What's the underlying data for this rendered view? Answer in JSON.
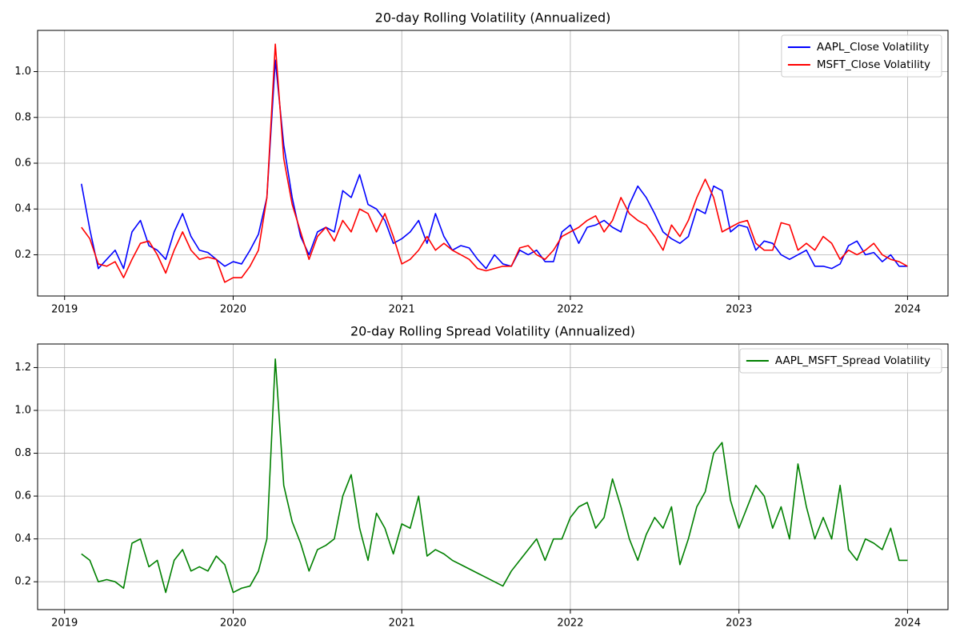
{
  "chart_data": [
    {
      "type": "line",
      "title": "20-day Rolling Volatility (Annualized)",
      "x": [
        2019.1,
        2019.15,
        2019.2,
        2019.25,
        2019.3,
        2019.35,
        2019.4,
        2019.45,
        2019.5,
        2019.55,
        2019.6,
        2019.65,
        2019.7,
        2019.75,
        2019.8,
        2019.85,
        2019.9,
        2019.95,
        2020.0,
        2020.05,
        2020.1,
        2020.15,
        2020.2,
        2020.25,
        2020.3,
        2020.35,
        2020.4,
        2020.45,
        2020.5,
        2020.55,
        2020.6,
        2020.65,
        2020.7,
        2020.75,
        2020.8,
        2020.85,
        2020.9,
        2020.95,
        2021.0,
        2021.05,
        2021.1,
        2021.15,
        2021.2,
        2021.25,
        2021.3,
        2021.35,
        2021.4,
        2021.45,
        2021.5,
        2021.55,
        2021.6,
        2021.65,
        2021.7,
        2021.75,
        2021.8,
        2021.85,
        2021.9,
        2021.95,
        2022.0,
        2022.05,
        2022.1,
        2022.15,
        2022.2,
        2022.25,
        2022.3,
        2022.35,
        2022.4,
        2022.45,
        2022.5,
        2022.55,
        2022.6,
        2022.65,
        2022.7,
        2022.75,
        2022.8,
        2022.85,
        2022.9,
        2022.95,
        2023.0,
        2023.05,
        2023.1,
        2023.15,
        2023.2,
        2023.25,
        2023.3,
        2023.35,
        2023.4,
        2023.45,
        2023.5,
        2023.55,
        2023.6,
        2023.65,
        2023.7,
        2023.75,
        2023.8,
        2023.85,
        2023.9,
        2023.95,
        2024.0
      ],
      "series": [
        {
          "name": "AAPL_Close Volatility",
          "color": "#0000ff",
          "values": [
            0.51,
            0.31,
            0.14,
            0.18,
            0.22,
            0.14,
            0.3,
            0.35,
            0.24,
            0.22,
            0.18,
            0.3,
            0.38,
            0.28,
            0.22,
            0.21,
            0.18,
            0.15,
            0.17,
            0.16,
            0.22,
            0.29,
            0.45,
            1.05,
            0.68,
            0.45,
            0.28,
            0.2,
            0.3,
            0.32,
            0.3,
            0.48,
            0.45,
            0.55,
            0.42,
            0.4,
            0.35,
            0.25,
            0.27,
            0.3,
            0.35,
            0.25,
            0.38,
            0.28,
            0.22,
            0.24,
            0.23,
            0.18,
            0.14,
            0.2,
            0.16,
            0.15,
            0.22,
            0.2,
            0.22,
            0.17,
            0.17,
            0.3,
            0.33,
            0.25,
            0.32,
            0.33,
            0.35,
            0.32,
            0.3,
            0.42,
            0.5,
            0.45,
            0.38,
            0.3,
            0.27,
            0.25,
            0.28,
            0.4,
            0.38,
            0.5,
            0.48,
            0.3,
            0.33,
            0.32,
            0.22,
            0.26,
            0.25,
            0.2,
            0.18,
            0.2,
            0.22,
            0.15,
            0.15,
            0.14,
            0.16,
            0.24,
            0.26,
            0.2,
            0.21,
            0.17,
            0.2,
            0.15,
            0.15
          ]
        },
        {
          "name": "MSFT_Close Volatility",
          "color": "#ff0000",
          "values": [
            0.32,
            0.27,
            0.16,
            0.15,
            0.17,
            0.1,
            0.18,
            0.25,
            0.26,
            0.2,
            0.12,
            0.22,
            0.3,
            0.22,
            0.18,
            0.19,
            0.18,
            0.08,
            0.1,
            0.1,
            0.15,
            0.22,
            0.45,
            1.12,
            0.62,
            0.42,
            0.3,
            0.18,
            0.28,
            0.32,
            0.26,
            0.35,
            0.3,
            0.4,
            0.38,
            0.3,
            0.38,
            0.28,
            0.16,
            0.18,
            0.22,
            0.28,
            0.22,
            0.25,
            0.22,
            0.2,
            0.18,
            0.14,
            0.13,
            0.14,
            0.15,
            0.15,
            0.23,
            0.24,
            0.2,
            0.18,
            0.22,
            0.28,
            0.3,
            0.32,
            0.35,
            0.37,
            0.3,
            0.35,
            0.45,
            0.38,
            0.35,
            0.33,
            0.28,
            0.22,
            0.33,
            0.28,
            0.35,
            0.45,
            0.53,
            0.45,
            0.3,
            0.32,
            0.34,
            0.35,
            0.25,
            0.22,
            0.22,
            0.34,
            0.33,
            0.22,
            0.25,
            0.22,
            0.28,
            0.25,
            0.18,
            0.22,
            0.2,
            0.22,
            0.25,
            0.2,
            0.18,
            0.17,
            0.15
          ]
        }
      ],
      "xlim": [
        2018.84,
        2024.24
      ],
      "xticks": [
        2019,
        2020,
        2021,
        2022,
        2023,
        2024
      ],
      "ylim": [
        0.02,
        1.18
      ],
      "yticks": [
        0.2,
        0.4,
        0.6,
        0.8,
        {
          "value": 1.0,
          "label": "1.0"
        }
      ],
      "grid": true,
      "legend": "upper-right"
    },
    {
      "type": "line",
      "title": "20-day Rolling Spread Volatility (Annualized)",
      "x": [
        2019.1,
        2019.15,
        2019.2,
        2019.25,
        2019.3,
        2019.35,
        2019.4,
        2019.45,
        2019.5,
        2019.55,
        2019.6,
        2019.65,
        2019.7,
        2019.75,
        2019.8,
        2019.85,
        2019.9,
        2019.95,
        2020.0,
        2020.05,
        2020.1,
        2020.15,
        2020.2,
        2020.25,
        2020.3,
        2020.35,
        2020.4,
        2020.45,
        2020.5,
        2020.55,
        2020.6,
        2020.65,
        2020.7,
        2020.75,
        2020.8,
        2020.85,
        2020.9,
        2020.95,
        2021.0,
        2021.05,
        2021.1,
        2021.15,
        2021.2,
        2021.25,
        2021.3,
        2021.35,
        2021.4,
        2021.45,
        2021.5,
        2021.55,
        2021.6,
        2021.65,
        2021.7,
        2021.75,
        2021.8,
        2021.85,
        2021.9,
        2021.95,
        2022.0,
        2022.05,
        2022.1,
        2022.15,
        2022.2,
        2022.25,
        2022.3,
        2022.35,
        2022.4,
        2022.45,
        2022.5,
        2022.55,
        2022.6,
        2022.65,
        2022.7,
        2022.75,
        2022.8,
        2022.85,
        2022.9,
        2022.95,
        2023.0,
        2023.05,
        2023.1,
        2023.15,
        2023.2,
        2023.25,
        2023.3,
        2023.35,
        2023.4,
        2023.45,
        2023.5,
        2023.55,
        2023.6,
        2023.65,
        2023.7,
        2023.75,
        2023.8,
        2023.85,
        2023.9,
        2023.95,
        2024.0
      ],
      "series": [
        {
          "name": "AAPL_MSFT_Spread Volatility",
          "color": "#008000",
          "values": [
            0.33,
            0.3,
            0.2,
            0.21,
            0.2,
            0.17,
            0.38,
            0.4,
            0.27,
            0.3,
            0.15,
            0.3,
            0.35,
            0.25,
            0.27,
            0.25,
            0.32,
            0.28,
            0.15,
            0.17,
            0.18,
            0.25,
            0.4,
            1.24,
            0.65,
            0.48,
            0.38,
            0.25,
            0.35,
            0.37,
            0.4,
            0.6,
            0.7,
            0.45,
            0.3,
            0.52,
            0.45,
            0.33,
            0.47,
            0.45,
            0.6,
            0.32,
            0.35,
            0.33,
            0.3,
            0.28,
            0.26,
            0.24,
            0.22,
            0.2,
            0.18,
            0.25,
            0.3,
            0.35,
            0.4,
            0.3,
            0.4,
            0.4,
            0.5,
            0.55,
            0.57,
            0.45,
            0.5,
            0.68,
            0.55,
            0.4,
            0.3,
            0.42,
            0.5,
            0.45,
            0.55,
            0.28,
            0.4,
            0.55,
            0.62,
            0.8,
            0.85,
            0.58,
            0.45,
            0.55,
            0.65,
            0.6,
            0.45,
            0.55,
            0.4,
            0.75,
            0.55,
            0.4,
            0.5,
            0.4,
            0.65,
            0.35,
            0.3,
            0.4,
            0.38,
            0.35,
            0.45,
            0.3,
            0.3
          ]
        }
      ],
      "xlim": [
        2018.84,
        2024.24
      ],
      "xticks": [
        2019,
        2020,
        2021,
        2022,
        2023,
        2024
      ],
      "ylim": [
        0.07,
        1.31
      ],
      "yticks": [
        0.2,
        0.4,
        0.6,
        0.8,
        {
          "value": 1.0,
          "label": "1.0"
        },
        1.2
      ],
      "grid": true,
      "legend": "upper-right"
    }
  ]
}
